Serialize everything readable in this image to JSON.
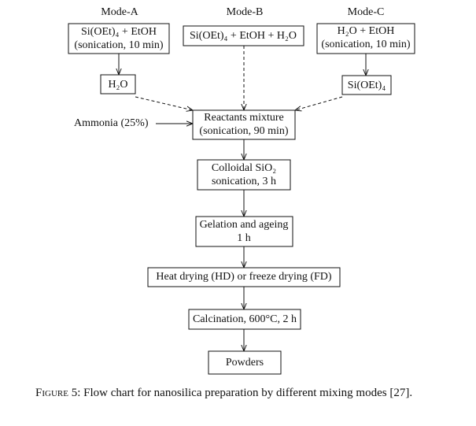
{
  "modes": [
    {
      "label": "Mode-A",
      "lines": [
        "Si(OEt)₄ + EtOH",
        "(sonication, 10 min)"
      ]
    },
    {
      "label": "Mode-B",
      "lines": [
        "Si(OEt)₄ + EtOH + H₂O"
      ]
    },
    {
      "label": "Mode-C",
      "lines": [
        "H₂O + EtOH",
        "(sonication, 10 min)"
      ]
    }
  ],
  "intermediates": [
    {
      "label": "H₂O"
    },
    {
      "label": "Si(OEt)₄"
    }
  ],
  "side_input": {
    "label": "Ammonia (25%)"
  },
  "steps": [
    {
      "lines": [
        "Reactants mixture",
        "(sonication, 90 min)"
      ]
    },
    {
      "lines": [
        "Colloidal SiO₂",
        "sonication, 3 h"
      ]
    },
    {
      "lines": [
        "Gelation and ageing",
        "1 h"
      ]
    },
    {
      "lines": [
        "Heat drying (HD) or freeze drying (FD)"
      ]
    },
    {
      "lines": [
        "Calcination, 600°C, 2 h"
      ]
    },
    {
      "lines": [
        "Powders"
      ]
    }
  ],
  "caption": {
    "label": "Figure 5:",
    "text": "Flow chart for nanosilica preparation by different mixing modes [27]."
  }
}
